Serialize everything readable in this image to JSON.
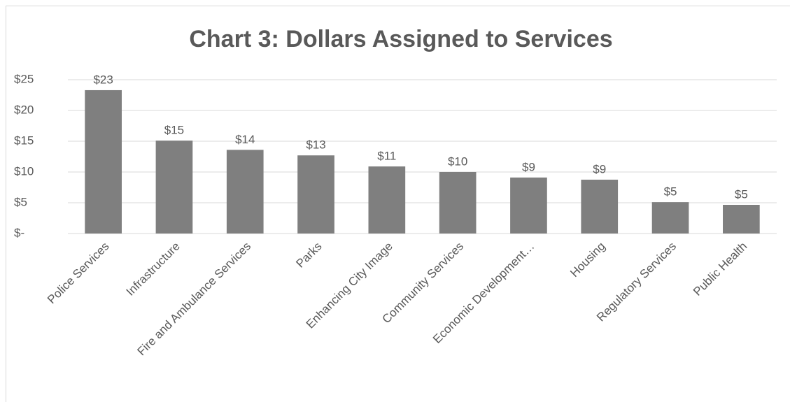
{
  "chart_data": {
    "type": "bar",
    "title": "Chart 3: Dollars Assigned to Services",
    "categories": [
      "Police Services",
      "Infrastructure",
      "Fire and Ambulance Services",
      "Parks",
      "Enhancing City Image",
      "Community Services",
      "Economic Development…",
      "Housing",
      "Regulatory Services",
      "Public Health"
    ],
    "values": [
      23.3,
      15.1,
      13.6,
      12.7,
      10.9,
      10.0,
      9.1,
      8.75,
      5.1,
      4.66
    ],
    "value_labels": [
      "$23",
      "$15",
      "$14",
      "$13",
      "$11",
      "$10",
      "$9",
      "$9",
      "$5",
      "$5"
    ],
    "color": "#7f7f7f",
    "ylim": [
      0,
      25
    ],
    "yticks": [
      {
        "value": 0,
        "label": "$-"
      },
      {
        "value": 5,
        "label": "$5"
      },
      {
        "value": 10,
        "label": "$10"
      },
      {
        "value": 15,
        "label": "$15"
      },
      {
        "value": 20,
        "label": "$20"
      },
      {
        "value": 25,
        "label": "$25"
      }
    ],
    "grid": true
  }
}
